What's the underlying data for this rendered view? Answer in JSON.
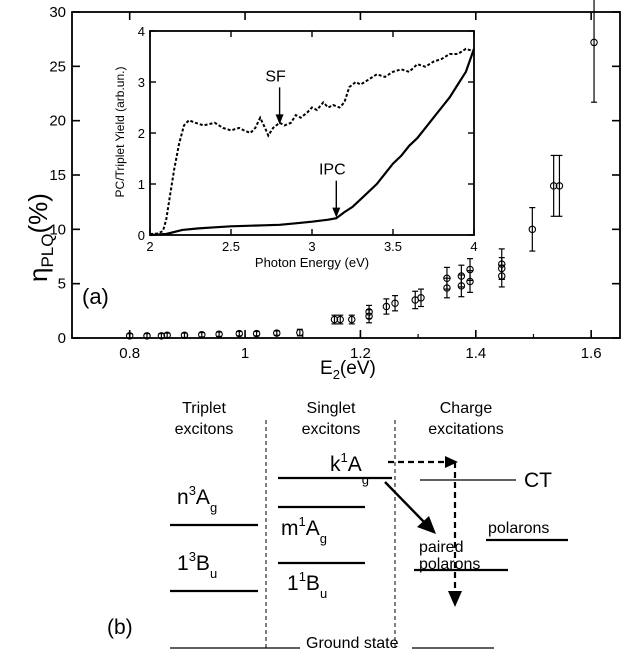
{
  "chart_data": [
    {
      "type": "scatter",
      "panel_label": "(a)",
      "xlabel": "E",
      "xlabel_sub": "2",
      "xlabel_unit": "(eV)",
      "ylabel": "η",
      "ylabel_sub": "PLQ",
      "ylabel_unit": "(%)",
      "xlim": [
        0.7,
        1.65
      ],
      "ylim": [
        0,
        30
      ],
      "x_ticks": [
        "0.8",
        "1",
        "1.2",
        "1.4",
        "1.6"
      ],
      "y_ticks": [
        "0",
        "5",
        "10",
        "15",
        "20",
        "25",
        "30"
      ],
      "points": [
        {
          "x": 0.8,
          "y": 0.2,
          "err": 0.2
        },
        {
          "x": 0.83,
          "y": 0.2,
          "err": 0.2
        },
        {
          "x": 0.855,
          "y": 0.2,
          "err": 0.2
        },
        {
          "x": 0.865,
          "y": 0.25,
          "err": 0.2
        },
        {
          "x": 0.895,
          "y": 0.25,
          "err": 0.2
        },
        {
          "x": 0.925,
          "y": 0.3,
          "err": 0.2
        },
        {
          "x": 0.955,
          "y": 0.35,
          "err": 0.2
        },
        {
          "x": 0.99,
          "y": 0.4,
          "err": 0.2
        },
        {
          "x": 1.02,
          "y": 0.4,
          "err": 0.2
        },
        {
          "x": 1.055,
          "y": 0.45,
          "err": 0.2
        },
        {
          "x": 1.095,
          "y": 0.5,
          "err": 0.3
        },
        {
          "x": 1.155,
          "y": 1.7,
          "err": 0.4
        },
        {
          "x": 1.165,
          "y": 1.7,
          "err": 0.4
        },
        {
          "x": 1.185,
          "y": 1.7,
          "err": 0.4
        },
        {
          "x": 1.215,
          "y": 2.0,
          "err": 0.6
        },
        {
          "x": 1.215,
          "y": 2.4,
          "err": 0.6
        },
        {
          "x": 1.245,
          "y": 2.9,
          "err": 0.7
        },
        {
          "x": 1.26,
          "y": 3.2,
          "err": 0.7
        },
        {
          "x": 1.295,
          "y": 3.5,
          "err": 0.8
        },
        {
          "x": 1.305,
          "y": 3.7,
          "err": 0.8
        },
        {
          "x": 1.35,
          "y": 4.6,
          "err": 0.9
        },
        {
          "x": 1.35,
          "y": 5.5,
          "err": 1.0
        },
        {
          "x": 1.375,
          "y": 4.8,
          "err": 1.0
        },
        {
          "x": 1.375,
          "y": 5.7,
          "err": 1.0
        },
        {
          "x": 1.39,
          "y": 5.2,
          "err": 1.0
        },
        {
          "x": 1.39,
          "y": 6.3,
          "err": 1.0
        },
        {
          "x": 1.445,
          "y": 5.7,
          "err": 1.0
        },
        {
          "x": 1.445,
          "y": 6.4,
          "err": 1.0
        },
        {
          "x": 1.445,
          "y": 6.8,
          "err": 1.4
        },
        {
          "x": 1.498,
          "y": 10.0,
          "err": 2.0
        },
        {
          "x": 1.535,
          "y": 14.0,
          "err": 2.8
        },
        {
          "x": 1.545,
          "y": 14.0,
          "err": 2.8
        },
        {
          "x": 1.605,
          "y": 27.2,
          "err": 5.5
        }
      ]
    },
    {
      "type": "line",
      "role": "inset",
      "xlabel": "Photon Energy (eV)",
      "ylabel": "PC/Triplet Yield (arb.un.)",
      "xlim": [
        2,
        4
      ],
      "ylim": [
        0,
        4
      ],
      "x_ticks": [
        "2",
        "2.5",
        "3",
        "3.5",
        "4"
      ],
      "y_ticks": [
        "0",
        "1",
        "2",
        "3",
        "4"
      ],
      "series": [
        {
          "style": "dashed",
          "points": [
            [
              2.0,
              0.02
            ],
            [
              2.05,
              0.03
            ],
            [
              2.08,
              0.08
            ],
            [
              2.1,
              0.3
            ],
            [
              2.12,
              0.7
            ],
            [
              2.15,
              1.3
            ],
            [
              2.18,
              1.8
            ],
            [
              2.21,
              2.15
            ],
            [
              2.24,
              2.25
            ],
            [
              2.28,
              2.2
            ],
            [
              2.33,
              2.15
            ],
            [
              2.4,
              2.2
            ],
            [
              2.45,
              2.1
            ],
            [
              2.5,
              2.05
            ],
            [
              2.55,
              2.1
            ],
            [
              2.58,
              2.05
            ],
            [
              2.62,
              2.0
            ],
            [
              2.65,
              2.1
            ],
            [
              2.68,
              2.3
            ],
            [
              2.71,
              2.1
            ],
            [
              2.73,
              1.95
            ],
            [
              2.76,
              2.1
            ],
            [
              2.8,
              2.2
            ],
            [
              2.83,
              2.15
            ],
            [
              2.87,
              2.2
            ],
            [
              2.9,
              2.35
            ],
            [
              2.93,
              2.3
            ],
            [
              2.97,
              2.4
            ],
            [
              3.0,
              2.5
            ],
            [
              3.03,
              2.45
            ],
            [
              3.07,
              2.6
            ],
            [
              3.1,
              2.5
            ],
            [
              3.13,
              2.55
            ],
            [
              3.17,
              2.5
            ],
            [
              3.2,
              2.6
            ],
            [
              3.23,
              2.9
            ],
            [
              3.27,
              3.0
            ],
            [
              3.3,
              2.95
            ],
            [
              3.35,
              3.05
            ],
            [
              3.4,
              3.15
            ],
            [
              3.45,
              3.1
            ],
            [
              3.5,
              3.2
            ],
            [
              3.55,
              3.25
            ],
            [
              3.6,
              3.2
            ],
            [
              3.65,
              3.35
            ],
            [
              3.7,
              3.3
            ],
            [
              3.75,
              3.4
            ],
            [
              3.8,
              3.45
            ],
            [
              3.85,
              3.55
            ],
            [
              3.9,
              3.55
            ],
            [
              3.95,
              3.65
            ],
            [
              4.0,
              3.6
            ]
          ]
        },
        {
          "style": "solid",
          "points": [
            [
              2.0,
              0.0
            ],
            [
              2.1,
              0.02
            ],
            [
              2.2,
              0.1
            ],
            [
              2.3,
              0.13
            ],
            [
              2.4,
              0.15
            ],
            [
              2.5,
              0.17
            ],
            [
              2.6,
              0.18
            ],
            [
              2.7,
              0.19
            ],
            [
              2.8,
              0.2
            ],
            [
              2.9,
              0.23
            ],
            [
              3.0,
              0.26
            ],
            [
              3.1,
              0.3
            ],
            [
              3.15,
              0.33
            ],
            [
              3.2,
              0.45
            ],
            [
              3.25,
              0.55
            ],
            [
              3.3,
              0.7
            ],
            [
              3.35,
              0.85
            ],
            [
              3.4,
              1.0
            ],
            [
              3.45,
              1.2
            ],
            [
              3.5,
              1.4
            ],
            [
              3.55,
              1.55
            ],
            [
              3.6,
              1.75
            ],
            [
              3.65,
              1.9
            ],
            [
              3.7,
              2.1
            ],
            [
              3.75,
              2.3
            ],
            [
              3.8,
              2.5
            ],
            [
              3.85,
              2.7
            ],
            [
              3.9,
              2.95
            ],
            [
              3.95,
              3.2
            ],
            [
              4.0,
              3.65
            ]
          ]
        }
      ],
      "annotations": [
        {
          "text": "SF",
          "x": 2.8,
          "y": 2.15
        },
        {
          "text": "IPC",
          "x": 3.15,
          "y": 0.32
        }
      ]
    }
  ],
  "diagram": {
    "panel_label": "(b)",
    "columns": [
      {
        "line1": "Triplet",
        "line2": "excitons"
      },
      {
        "line1": "Singlet",
        "line2": "excitons"
      },
      {
        "line1": "Charge",
        "line2": "excitations"
      }
    ],
    "levels": {
      "n3Ag": {
        "base": "n",
        "sup": "3",
        "tail": "A",
        "sub": "g"
      },
      "t13Bu": {
        "base": "1",
        "sup": "3",
        "tail": "B",
        "sub": "u"
      },
      "k1Ag": {
        "base": "k",
        "sup": "1",
        "tail": "A",
        "sub": "g"
      },
      "m1Ag": {
        "base": "m",
        "sup": "1",
        "tail": "A",
        "sub": "g"
      },
      "s11Bu": {
        "base": "1",
        "sup": "1",
        "tail": "B",
        "sub": "u"
      },
      "ct": "CT",
      "paired_1": "paired",
      "paired_2": "polarons",
      "polarons": "polarons",
      "ground": "Ground state"
    }
  }
}
